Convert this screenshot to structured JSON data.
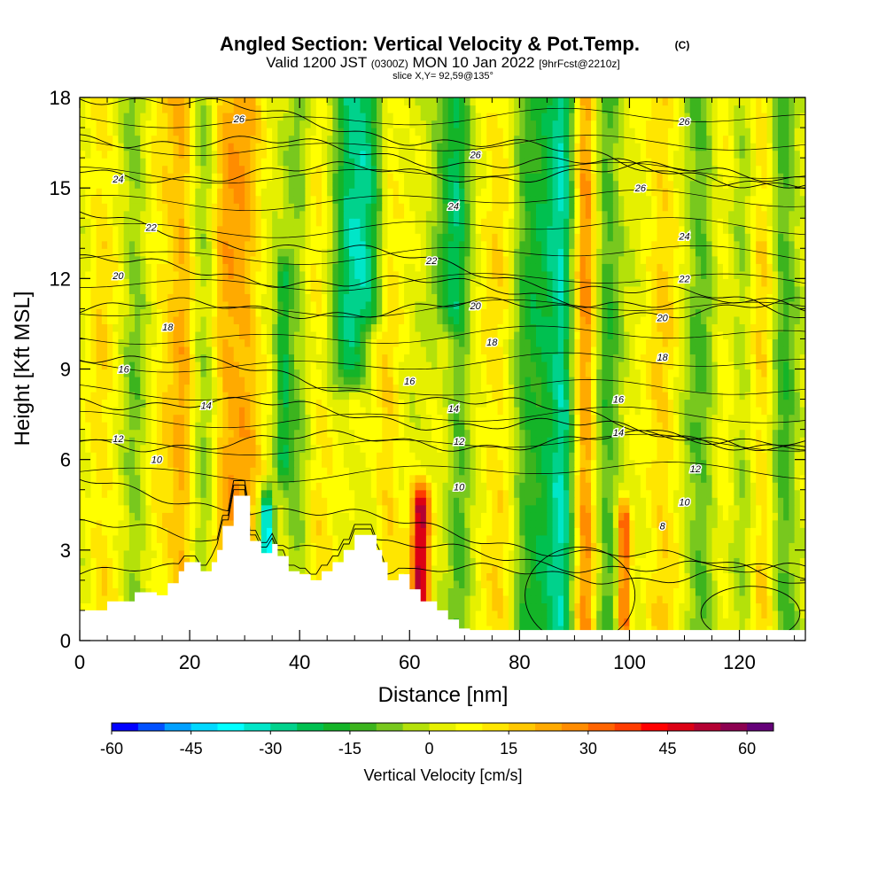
{
  "chart_data": {
    "type": "heatmap",
    "title": "Angled Section: Vertical Velocity & Pot.Temp.",
    "title_units": "(C)",
    "subtitle": {
      "prefix": "Valid 1200 JST",
      "utc": "(0300Z)",
      "date": "MON 10 Jan 2022",
      "forecast": "[9hrFcst@2210z]"
    },
    "slice_label": "slice X,Y= 92,59@135°",
    "xlabel": "Distance [nm]",
    "ylabel": "Height [Kft MSL]",
    "xlim": [
      0,
      132
    ],
    "ylim": [
      0,
      18
    ],
    "x_ticks": [
      0,
      20,
      40,
      60,
      80,
      100,
      120
    ],
    "y_ticks": [
      0,
      3,
      6,
      9,
      12,
      15,
      18
    ],
    "colorbar": {
      "label": "Vertical Velocity [cm/s]",
      "range": [
        -60,
        65
      ],
      "ticks": [
        -60,
        -45,
        -30,
        -15,
        0,
        15,
        30,
        45,
        60
      ],
      "colors": [
        "#0000ff",
        "#0050ff",
        "#00a0ff",
        "#00d8ff",
        "#00ffff",
        "#00e6c8",
        "#00d28c",
        "#00c050",
        "#14b428",
        "#3cb41e",
        "#78c81e",
        "#b4e10a",
        "#e6f000",
        "#ffff00",
        "#ffe600",
        "#ffc800",
        "#ffaa00",
        "#ff8c00",
        "#ff6400",
        "#ff3c00",
        "#ff0000",
        "#dc0014",
        "#b40032",
        "#8c0050",
        "#640078"
      ]
    },
    "terrain": [
      [
        0,
        1
      ],
      [
        5,
        1
      ],
      [
        5,
        1.3
      ],
      [
        10,
        1.3
      ],
      [
        10,
        1.6
      ],
      [
        14,
        1.6
      ],
      [
        14,
        1.5
      ],
      [
        16,
        1.5
      ],
      [
        16,
        1.9
      ],
      [
        18,
        1.9
      ],
      [
        18,
        2.3
      ],
      [
        19,
        2.3
      ],
      [
        19,
        2.6
      ],
      [
        22,
        2.6
      ],
      [
        22,
        2.3
      ],
      [
        24,
        2.3
      ],
      [
        24,
        2.6
      ],
      [
        25,
        2.6
      ],
      [
        25,
        3
      ],
      [
        26,
        3
      ],
      [
        26,
        3.8
      ],
      [
        28,
        3.8
      ],
      [
        28,
        4.8
      ],
      [
        31,
        4.8
      ],
      [
        31,
        3.3
      ],
      [
        33,
        3.3
      ],
      [
        33,
        2.9
      ],
      [
        35,
        2.9
      ],
      [
        35,
        3.2
      ],
      [
        36,
        3.2
      ],
      [
        36,
        2.8
      ],
      [
        38,
        2.8
      ],
      [
        38,
        2.3
      ],
      [
        40,
        2.3
      ],
      [
        40,
        2.2
      ],
      [
        42,
        2.2
      ],
      [
        42,
        2.0
      ],
      [
        44,
        2.0
      ],
      [
        44,
        2.3
      ],
      [
        46,
        2.3
      ],
      [
        46,
        2.6
      ],
      [
        48,
        2.6
      ],
      [
        48,
        3.0
      ],
      [
        50,
        3.0
      ],
      [
        50,
        3.5
      ],
      [
        54,
        3.5
      ],
      [
        54,
        3.0
      ],
      [
        55,
        3.0
      ],
      [
        55,
        2.6
      ],
      [
        56,
        2.6
      ],
      [
        56,
        2.0
      ],
      [
        58,
        2.0
      ],
      [
        58,
        2.2
      ],
      [
        60,
        2.2
      ],
      [
        60,
        1.7
      ],
      [
        62,
        1.7
      ],
      [
        62,
        1.3
      ],
      [
        65,
        1.3
      ],
      [
        65,
        1.0
      ],
      [
        67,
        1.0
      ],
      [
        67,
        0.7
      ],
      [
        69,
        0.7
      ],
      [
        69,
        0.4
      ],
      [
        71,
        0.4
      ],
      [
        71,
        0.35
      ],
      [
        132,
        0.35
      ]
    ],
    "theta_levels": [
      8,
      10,
      12,
      14,
      16,
      18,
      20,
      22,
      24,
      26
    ],
    "theta_labels": [
      {
        "v": "26",
        "x": 29,
        "y": 17.3
      },
      {
        "v": "26",
        "x": 72,
        "y": 16.1
      },
      {
        "v": "26",
        "x": 110,
        "y": 17.2
      },
      {
        "v": "26",
        "x": 102,
        "y": 15.0
      },
      {
        "v": "24",
        "x": 7,
        "y": 15.3
      },
      {
        "v": "24",
        "x": 68,
        "y": 14.4
      },
      {
        "v": "24",
        "x": 110,
        "y": 13.4
      },
      {
        "v": "22",
        "x": 13,
        "y": 13.7
      },
      {
        "v": "22",
        "x": 64,
        "y": 12.6
      },
      {
        "v": "22",
        "x": 110,
        "y": 12.0
      },
      {
        "v": "20",
        "x": 7,
        "y": 12.1
      },
      {
        "v": "20",
        "x": 72,
        "y": 11.1
      },
      {
        "v": "20",
        "x": 106,
        "y": 10.7
      },
      {
        "v": "18",
        "x": 16,
        "y": 10.4
      },
      {
        "v": "18",
        "x": 75,
        "y": 9.9
      },
      {
        "v": "18",
        "x": 106,
        "y": 9.4
      },
      {
        "v": "16",
        "x": 8,
        "y": 9.0
      },
      {
        "v": "16",
        "x": 60,
        "y": 8.6
      },
      {
        "v": "16",
        "x": 98,
        "y": 8.0
      },
      {
        "v": "14",
        "x": 23,
        "y": 7.8
      },
      {
        "v": "14",
        "x": 68,
        "y": 7.7
      },
      {
        "v": "14",
        "x": 98,
        "y": 6.9
      },
      {
        "v": "12",
        "x": 7,
        "y": 6.7
      },
      {
        "v": "12",
        "x": 69,
        "y": 6.6
      },
      {
        "v": "12",
        "x": 112,
        "y": 5.7
      },
      {
        "v": "10",
        "x": 14,
        "y": 6.0
      },
      {
        "v": "10",
        "x": 69,
        "y": 5.1
      },
      {
        "v": "10",
        "x": 110,
        "y": 4.6
      },
      {
        "v": "8",
        "x": 106,
        "y": 3.8
      }
    ],
    "updraft_bands": [
      {
        "x": 4,
        "w": 2.5,
        "amp": 10
      },
      {
        "x": 16,
        "w": 3,
        "amp": 10
      },
      {
        "x": 19,
        "w": 2,
        "amp": 14
      },
      {
        "x": 26,
        "w": 2.5,
        "amp": 16
      },
      {
        "x": 30,
        "w": 3,
        "amp": 18
      },
      {
        "x": 43,
        "w": 3,
        "amp": 10
      },
      {
        "x": 56,
        "w": 2.5,
        "amp": 12
      },
      {
        "x": 62,
        "w": 1.6,
        "amp": 50,
        "ymin": 1.5,
        "ymax": 4.5
      },
      {
        "x": 76,
        "w": 3,
        "amp": 10
      },
      {
        "x": 92,
        "w": 2,
        "amp": 24
      },
      {
        "x": 99,
        "w": 1.2,
        "amp": 36,
        "ymin": 0.5,
        "ymax": 4
      },
      {
        "x": 106,
        "w": 3,
        "amp": 12
      },
      {
        "x": 118,
        "w": 3,
        "amp": 12
      },
      {
        "x": 124,
        "w": 2.5,
        "amp": 14
      }
    ],
    "downdraft_bands": [
      {
        "x": 10,
        "w": 2,
        "amp": -10
      },
      {
        "x": 23,
        "w": 2.5,
        "amp": -10
      },
      {
        "x": 37,
        "w": 1.5,
        "amp": -22,
        "ymin": 6,
        "ymax": 12
      },
      {
        "x": 40,
        "w": 2.5,
        "amp": -12
      },
      {
        "x": 49,
        "w": 3.5,
        "amp": -26,
        "ymin": 9
      },
      {
        "x": 53,
        "w": 3,
        "amp": -20,
        "ymin": 11
      },
      {
        "x": 67,
        "w": 3,
        "amp": -16,
        "ymin": 11
      },
      {
        "x": 69,
        "w": 2,
        "amp": -14
      },
      {
        "x": 81,
        "w": 2.5,
        "amp": -14
      },
      {
        "x": 85,
        "w": 3,
        "amp": -20
      },
      {
        "x": 88,
        "w": 2,
        "amp": -24
      },
      {
        "x": 96,
        "w": 2.5,
        "amp": -16
      },
      {
        "x": 113,
        "w": 3,
        "amp": -14
      },
      {
        "x": 120,
        "w": 3,
        "amp": -14
      },
      {
        "x": 128,
        "w": 2.5,
        "amp": -16
      },
      {
        "x": 34,
        "w": 1.2,
        "amp": -45,
        "ymin": 2.7,
        "ymax": 4.4
      }
    ]
  }
}
